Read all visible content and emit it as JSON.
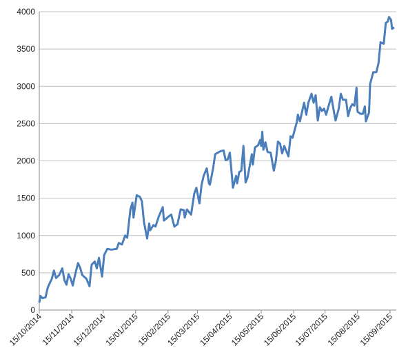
{
  "chart_data": {
    "type": "line",
    "x": [
      "15/10/2014",
      "16/10/2014",
      "18/10/2014",
      "21/10/2014",
      "23/10/2014",
      "27/10/2014",
      "29/10/2014",
      "31/10/2014",
      "03/11/2014",
      "06/11/2014",
      "08/11/2014",
      "10/11/2014",
      "12/11/2014",
      "14/11/2014",
      "16/11/2014",
      "18/11/2014",
      "21/11/2014",
      "23/11/2014",
      "25/11/2014",
      "29/11/2014",
      "02/12/2014",
      "04/12/2014",
      "07/12/2014",
      "09/12/2014",
      "11/12/2014",
      "14/12/2014",
      "16/12/2014",
      "19/12/2014",
      "23/12/2014",
      "28/12/2014",
      "30/12/2014",
      "02/01/2015",
      "05/01/2015",
      "07/01/2015",
      "10/01/2015",
      "12/01/2015",
      "13/01/2015",
      "16/01/2015",
      "19/01/2015",
      "21/01/2015",
      "23/01/2015",
      "26/01/2015",
      "28/01/2015",
      "29/01/2015",
      "01/02/2015",
      "03/02/2015",
      "06/02/2015",
      "10/02/2015",
      "11/02/2015",
      "16/02/2015",
      "18/02/2015",
      "21/02/2015",
      "24/02/2015",
      "27/02/2015",
      "02/03/2015",
      "03/03/2015",
      "05/03/2015",
      "09/03/2015",
      "12/03/2015",
      "14/03/2015",
      "17/03/2015",
      "19/03/2015",
      "21/03/2015",
      "24/03/2015",
      "26/03/2015",
      "27/03/2015",
      "30/03/2015",
      "01/04/2015",
      "06/04/2015",
      "09/04/2015",
      "11/04/2015",
      "13/04/2015",
      "15/04/2015",
      "18/04/2015",
      "21/04/2015",
      "22/04/2015",
      "24/04/2015",
      "26/04/2015",
      "28/04/2015",
      "30/04/2015",
      "02/05/2015",
      "06/05/2015",
      "07/05/2015",
      "09/05/2015",
      "12/05/2015",
      "14/05/2015",
      "15/05/2015",
      "16/05/2015",
      "17/05/2015",
      "19/05/2015",
      "21/05/2015",
      "24/05/2015",
      "27/05/2015",
      "29/05/2015",
      "31/05/2015",
      "02/06/2015",
      "04/06/2015",
      "06/06/2015",
      "10/06/2015",
      "12/06/2015",
      "14/06/2015",
      "16/06/2015",
      "18/06/2015",
      "19/06/2015",
      "21/06/2015",
      "23/06/2015",
      "25/06/2015",
      "27/06/2015",
      "29/06/2015",
      "02/07/2015",
      "04/07/2015",
      "06/07/2015",
      "08/07/2015",
      "10/07/2015",
      "12/07/2015",
      "14/07/2015",
      "16/07/2015",
      "19/07/2015",
      "21/07/2015",
      "23/07/2015",
      "25/07/2015",
      "28/07/2015",
      "30/07/2015",
      "01/08/2015",
      "04/08/2015",
      "06/08/2015",
      "08/08/2015",
      "10/08/2015",
      "12/08/2015",
      "14/08/2015",
      "15/08/2015",
      "18/08/2015",
      "20/08/2015",
      "22/08/2015",
      "23/08/2015",
      "26/08/2015",
      "27/08/2015",
      "30/08/2015",
      "02/09/2015",
      "04/09/2015",
      "06/09/2015",
      "09/09/2015",
      "11/09/2015",
      "13/09/2015",
      "14/09/2015",
      "16/09/2015",
      "17/09/2015",
      "19/09/2015"
    ],
    "values": [
      100,
      190,
      160,
      170,
      300,
      420,
      530,
      430,
      470,
      560,
      400,
      340,
      480,
      420,
      330,
      460,
      630,
      570,
      470,
      420,
      320,
      610,
      650,
      560,
      700,
      450,
      740,
      820,
      810,
      820,
      900,
      880,
      1000,
      970,
      1350,
      1440,
      1240,
      1540,
      1520,
      1460,
      1180,
      960,
      1160,
      1070,
      1140,
      1120,
      1250,
      1380,
      1200,
      1260,
      1280,
      1120,
      1150,
      1350,
      1340,
      1240,
      1350,
      1280,
      1560,
      1640,
      1430,
      1680,
      1800,
      1900,
      1700,
      1680,
      1900,
      2090,
      2130,
      2140,
      2010,
      2020,
      2110,
      1640,
      1800,
      1700,
      1850,
      1870,
      2200,
      1710,
      1780,
      2090,
      1950,
      2180,
      2210,
      2280,
      2200,
      2390,
      2150,
      2250,
      2120,
      2110,
      1870,
      2000,
      2260,
      2230,
      2100,
      2200,
      2060,
      2330,
      2310,
      2420,
      2520,
      2620,
      2530,
      2660,
      2780,
      2620,
      2780,
      2900,
      2780,
      2880,
      2540,
      2720,
      2670,
      2700,
      2620,
      2770,
      2860,
      2690,
      2540,
      2700,
      2900,
      2820,
      2820,
      2600,
      2710,
      2760,
      2740,
      2980,
      2660,
      2630,
      2630,
      2730,
      2530,
      2650,
      3030,
      3190,
      3190,
      3310,
      3590,
      3570,
      3850,
      3870,
      3930,
      3890,
      3770,
      3790
    ],
    "color": "#4a7ebb",
    "xlim": [
      "15/10/2014",
      "21/09/2015"
    ],
    "xticks": [
      "15/10/2014",
      "15/11/2014",
      "15/12/2014",
      "15/01/2015",
      "15/02/2015",
      "15/03/2015",
      "15/04/2015",
      "15/05/2015",
      "15/06/2015",
      "15/07/2015",
      "15/08/2015",
      "15/09/2015"
    ],
    "ylim": [
      0,
      4000
    ],
    "yticks": [
      0,
      500,
      1000,
      1500,
      2000,
      2500,
      3000,
      3500,
      4000
    ],
    "grid": true
  }
}
